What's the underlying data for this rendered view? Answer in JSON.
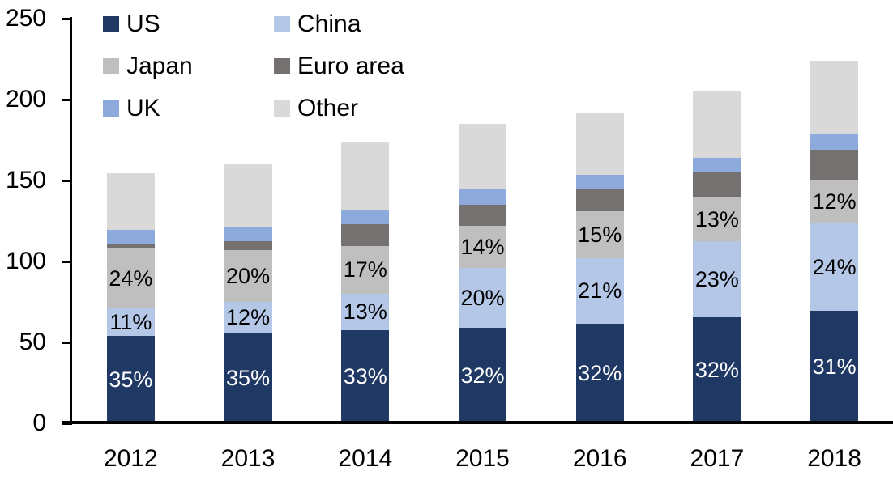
{
  "chart_data": {
    "type": "bar",
    "stacked": true,
    "grid": false,
    "background_color": "#FFFFFF",
    "axis_color": "#000000",
    "ylim": [
      0,
      250
    ],
    "yticks": [
      0,
      50,
      100,
      150,
      200,
      250
    ],
    "categories": [
      "2012",
      "2013",
      "2014",
      "2015",
      "2016",
      "2017",
      "2018"
    ],
    "totals": [
      154.5,
      160,
      174,
      185,
      192,
      205,
      224
    ],
    "series": [
      {
        "name": "US",
        "color": "#1F3864",
        "values": [
          54,
          56,
          57.5,
          59,
          61.5,
          65.5,
          69.5
        ],
        "data_labels": [
          "35%",
          "35%",
          "33%",
          "32%",
          "32%",
          "32%",
          "31%"
        ],
        "label_color": "#FFFFFF"
      },
      {
        "name": "China",
        "color": "#B4C7E7",
        "values": [
          17,
          19,
          22.5,
          37,
          40.5,
          47,
          54
        ],
        "data_labels": [
          "11%",
          "12%",
          "13%",
          "20%",
          "21%",
          "23%",
          "24%"
        ],
        "label_color": "#000000"
      },
      {
        "name": "Japan",
        "color": "#BFBFBF",
        "values": [
          37,
          32,
          29.5,
          26,
          29,
          27,
          27
        ],
        "data_labels": [
          "24%",
          "20%",
          "17%",
          "14%",
          "15%",
          "13%",
          "12%"
        ],
        "label_color": "#000000"
      },
      {
        "name": "Euro area",
        "color": "#767171",
        "values": [
          3,
          5.5,
          13.5,
          13,
          14,
          15.5,
          18.5
        ],
        "data_labels": [
          null,
          null,
          null,
          null,
          null,
          null,
          null
        ],
        "label_color": "#000000"
      },
      {
        "name": "UK",
        "color": "#8EAADC",
        "values": [
          8.5,
          8.5,
          9,
          9.5,
          8.5,
          9,
          9.5
        ],
        "data_labels": [
          null,
          null,
          null,
          null,
          null,
          null,
          null
        ],
        "label_color": "#000000"
      },
      {
        "name": "Other",
        "color": "#D9D9D9",
        "values": [
          35,
          39,
          42,
          40.5,
          38.5,
          41,
          45.5
        ],
        "data_labels": [
          null,
          null,
          null,
          null,
          null,
          null,
          null
        ],
        "label_color": "#000000"
      }
    ],
    "legend": {
      "position": "top-left",
      "columns": 2,
      "order": [
        "US",
        "China",
        "Japan",
        "Euro area",
        "UK",
        "Other"
      ]
    }
  }
}
